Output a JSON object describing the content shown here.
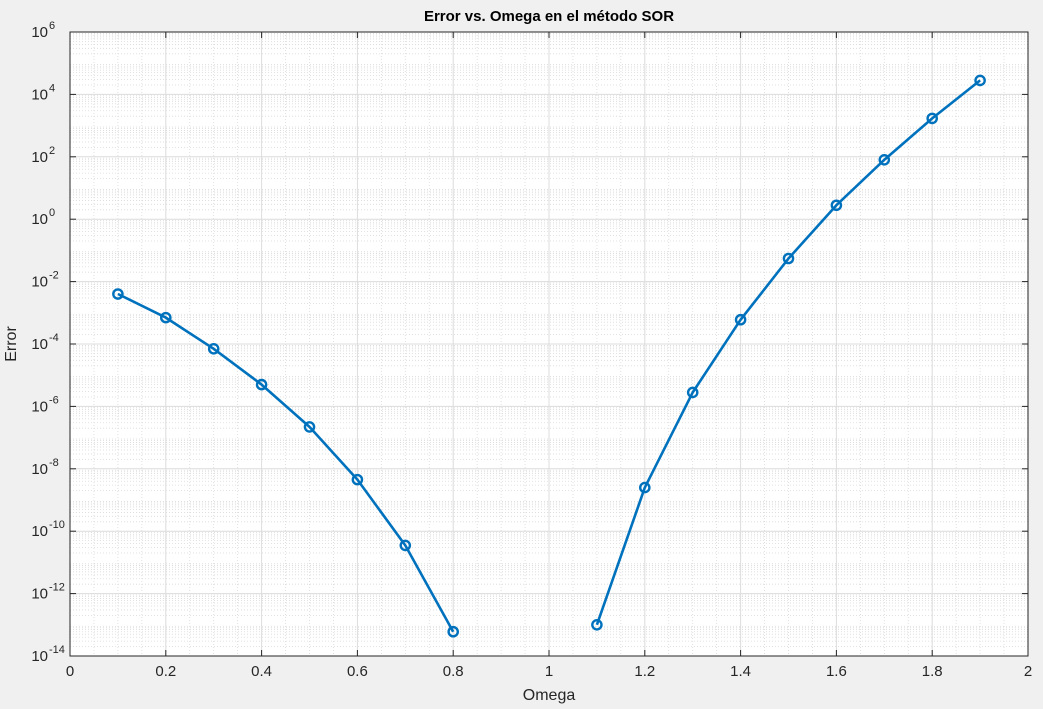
{
  "chart_data": {
    "type": "line",
    "title": "Error vs. Omega en el método SOR",
    "xlabel": "Omega",
    "ylabel": "Error",
    "xlim": [
      0,
      2
    ],
    "ylim": [
      1e-14,
      1000000.0
    ],
    "yscale": "log",
    "grid": true,
    "minor_grid": true,
    "x_ticks": [
      "0",
      "0.2",
      "0.4",
      "0.6",
      "0.8",
      "1",
      "1.2",
      "1.4",
      "1.6",
      "1.8",
      "2"
    ],
    "x_tick_values": [
      0,
      0.2,
      0.4,
      0.6,
      0.8,
      1.0,
      1.2,
      1.4,
      1.6,
      1.8,
      2.0
    ],
    "y_tick_exponents": [
      -14,
      -12,
      -10,
      -8,
      -6,
      -4,
      -2,
      0,
      2,
      4,
      6
    ],
    "y_tick_base": "10",
    "line_color": "#0072bd",
    "marker": "circle",
    "series": [
      {
        "x": [
          0.1,
          0.2,
          0.3,
          0.4,
          0.5,
          0.6,
          0.7,
          0.8
        ],
        "y": [
          0.004,
          0.0007,
          7e-05,
          5e-06,
          2.2e-07,
          4.5e-09,
          3.5e-11,
          6e-14
        ]
      },
      {
        "x": [
          1.1,
          1.2,
          1.3,
          1.4,
          1.5,
          1.6,
          1.7,
          1.8,
          1.9
        ],
        "y": [
          1e-13,
          2.5e-09,
          2.8e-06,
          0.0006,
          0.055,
          2.8,
          80,
          1700,
          28000
        ]
      }
    ]
  }
}
